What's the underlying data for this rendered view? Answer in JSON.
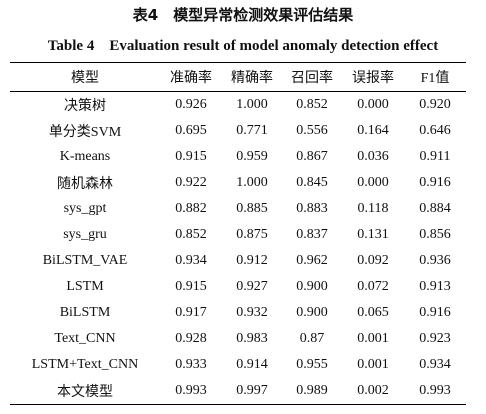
{
  "title_cn": "表4　模型异常检测效果评估结果",
  "title_en": "Table 4　Evaluation result of model anomaly detection effect",
  "table": {
    "header": [
      "模型",
      "准确率",
      "精确率",
      "召回率",
      "误报率",
      "F1值"
    ],
    "rows": [
      [
        "决策树",
        "0.926",
        "1.000",
        "0.852",
        "0.000",
        "0.920"
      ],
      [
        "单分类SVM",
        "0.695",
        "0.771",
        "0.556",
        "0.164",
        "0.646"
      ],
      [
        "K-means",
        "0.915",
        "0.959",
        "0.867",
        "0.036",
        "0.911"
      ],
      [
        "随机森林",
        "0.922",
        "1.000",
        "0.845",
        "0.000",
        "0.916"
      ],
      [
        "sys_gpt",
        "0.882",
        "0.885",
        "0.883",
        "0.118",
        "0.884"
      ],
      [
        "sys_gru",
        "0.852",
        "0.875",
        "0.837",
        "0.131",
        "0.856"
      ],
      [
        "BiLSTM_VAE",
        "0.934",
        "0.912",
        "0.962",
        "0.092",
        "0.936"
      ],
      [
        "LSTM",
        "0.915",
        "0.927",
        "0.900",
        "0.072",
        "0.913"
      ],
      [
        "BiLSTM",
        "0.917",
        "0.932",
        "0.900",
        "0.065",
        "0.916"
      ],
      [
        "Text_CNN",
        "0.928",
        "0.983",
        "0.87",
        "0.001",
        "0.923"
      ],
      [
        "LSTM+Text_CNN",
        "0.933",
        "0.914",
        "0.955",
        "0.001",
        "0.934"
      ],
      [
        "本文模型",
        "0.993",
        "0.997",
        "0.989",
        "0.002",
        "0.993"
      ]
    ]
  }
}
